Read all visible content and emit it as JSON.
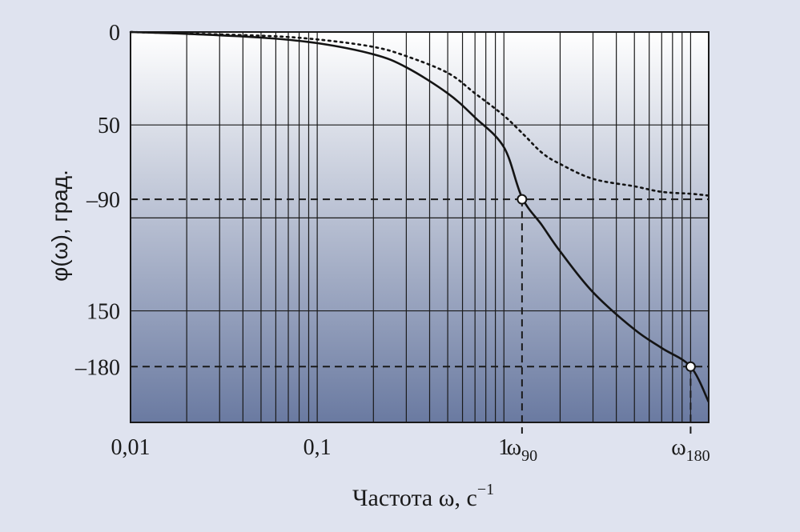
{
  "chart_data": {
    "type": "line",
    "title": "",
    "xlabel": "Частота ω, с",
    "xlabel_sup": "−1",
    "ylabel": "φ(ω),  град.",
    "x_scale": "log",
    "xlim": [
      0.01,
      12.5
    ],
    "ylim": [
      0,
      -210
    ],
    "grid": true,
    "x_ticks": [
      {
        "value": 0.01,
        "label": "0,01"
      },
      {
        "value": 0.1,
        "label": "0,1"
      },
      {
        "value": 1,
        "label": "1"
      },
      {
        "value": 1.25,
        "label": "ω",
        "sub": "90"
      },
      {
        "value": 10,
        "label": "ω",
        "sub": "180"
      }
    ],
    "y_ticks": [
      {
        "value": 0,
        "label": "0"
      },
      {
        "value": -50,
        "label": "50"
      },
      {
        "value": -90,
        "label": "–90"
      },
      {
        "value": -150,
        "label": "150"
      },
      {
        "value": -180,
        "label": "–180"
      }
    ],
    "series": [
      {
        "style": "solid",
        "color": "#141414",
        "points": [
          [
            0.01,
            0
          ],
          [
            0.02,
            -1
          ],
          [
            0.05,
            -3
          ],
          [
            0.1,
            -6
          ],
          [
            0.2,
            -12
          ],
          [
            0.3,
            -19
          ],
          [
            0.5,
            -33
          ],
          [
            0.7,
            -46
          ],
          [
            1.0,
            -62
          ],
          [
            1.25,
            -89
          ],
          [
            1.6,
            -104
          ],
          [
            2,
            -118
          ],
          [
            3,
            -140
          ],
          [
            5,
            -160
          ],
          [
            7,
            -170
          ],
          [
            10,
            -180
          ],
          [
            12.5,
            -199
          ]
        ]
      },
      {
        "style": "dotted",
        "color": "#141414",
        "points": [
          [
            0.01,
            0
          ],
          [
            0.05,
            -2
          ],
          [
            0.1,
            -4
          ],
          [
            0.2,
            -8
          ],
          [
            0.3,
            -13
          ],
          [
            0.5,
            -22
          ],
          [
            0.7,
            -33
          ],
          [
            1.0,
            -45
          ],
          [
            1.3,
            -56
          ],
          [
            1.6,
            -65
          ],
          [
            2,
            -71
          ],
          [
            3,
            -79
          ],
          [
            5,
            -83
          ],
          [
            7,
            -86
          ],
          [
            10,
            -87
          ],
          [
            12.5,
            -88
          ]
        ]
      }
    ],
    "reference_lines": [
      {
        "y": -90,
        "x": 1.25,
        "label": "ω90"
      },
      {
        "y": -180,
        "x": 10,
        "label": "ω180"
      }
    ],
    "markers": [
      {
        "x": 1.25,
        "y": -90
      },
      {
        "x": 10,
        "y": -180
      }
    ],
    "colors": {
      "background": "#dfe3ef",
      "plot_top": "#ffffff",
      "plot_bottom": "#6a7aa1",
      "grid": "#1a1a1a",
      "curve": "#141414"
    }
  }
}
